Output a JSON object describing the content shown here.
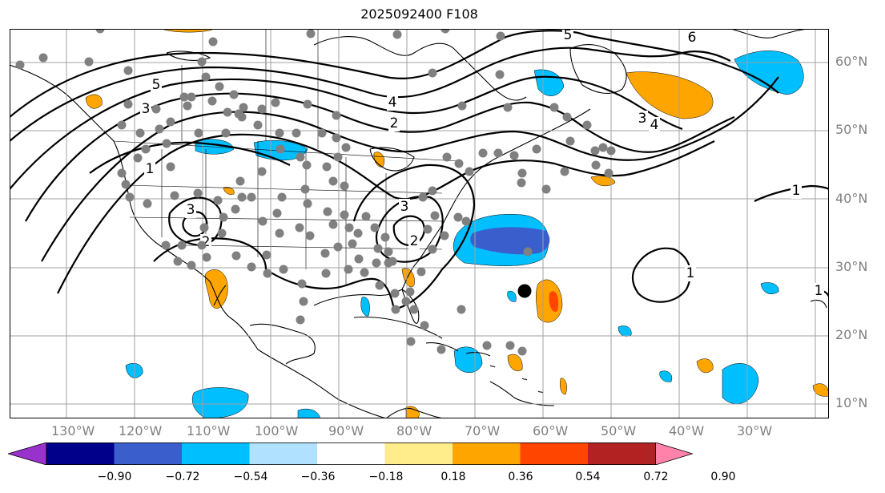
{
  "title": "2025092400 F108",
  "map": {
    "fill_colors": {
      "neg_0_36_0_54": "#00bfff",
      "neg_0_54_0_72": "#3a5fcd",
      "pos_0_36_0_54": "#ffa500",
      "pos_0_54_0_72": "#ff4500",
      "land_outline": "#000000",
      "station": "#808080",
      "marker": "#000000"
    },
    "contour_labels": [
      "5",
      "5",
      "6",
      "4",
      "3",
      "2",
      "3",
      "4",
      "1",
      "3",
      "2",
      "3",
      "2",
      "1",
      "1",
      "1"
    ]
  },
  "axes": {
    "lon_labels": [
      "130°W",
      "120°W",
      "110°W",
      "100°W",
      "90°W",
      "80°W",
      "70°W",
      "60°W",
      "50°W",
      "40°W",
      "30°W"
    ],
    "lat_labels": [
      "60°N",
      "50°N",
      "40°N",
      "30°N",
      "20°N",
      "10°N"
    ]
  },
  "colorbar": {
    "colors": [
      "#9932cc",
      "#00008b",
      "#3a5fcd",
      "#00bfff",
      "#b0e2ff",
      "#ffffff",
      "#ffec8b",
      "#ffa500",
      "#ff4500",
      "#b22222",
      "#ff82ab"
    ],
    "labels": [
      "−0.90",
      "−0.72",
      "−0.54",
      "−0.36",
      "−0.18",
      "0.18",
      "0.36",
      "0.54",
      "0.72",
      "0.90"
    ]
  }
}
